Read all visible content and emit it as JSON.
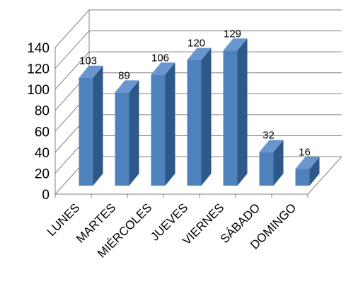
{
  "chart_data": {
    "type": "bar",
    "categories": [
      "LUNES",
      "MARTES",
      "MIÉRCOLES",
      "JUEVES",
      "VIERNES",
      "SÁBADO",
      "DOMINGO"
    ],
    "values": [
      103,
      89,
      106,
      120,
      129,
      32,
      16
    ],
    "ylim": [
      0,
      140
    ],
    "yticks": [
      0,
      20,
      40,
      60,
      80,
      100,
      120,
      140
    ],
    "grid": true,
    "style": "3d-column",
    "colors": {
      "bar_front": "#4F81BD",
      "bar_side": "#2E5887",
      "bar_top": "#6A96CF",
      "grid": "#808080"
    }
  }
}
